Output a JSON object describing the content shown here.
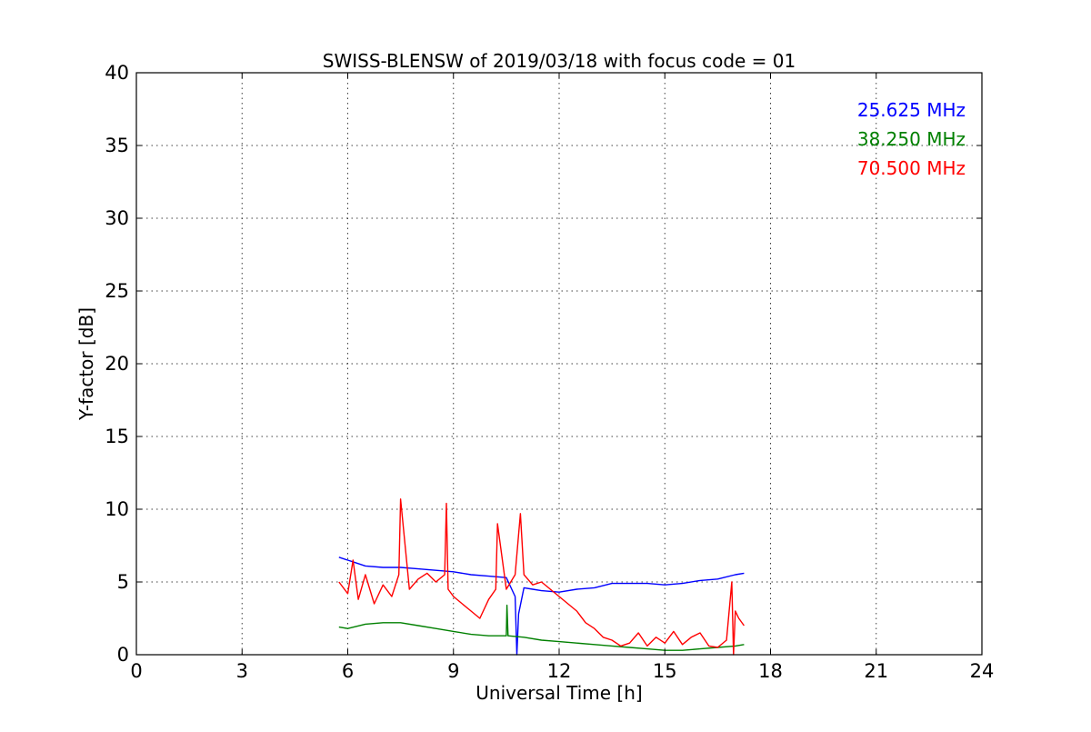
{
  "chart_data": {
    "type": "line",
    "title": "SWISS-BLENSW of 2019/03/18 with focus code = 01",
    "xlabel": "Universal Time [h]",
    "ylabel": "Y-factor [dB]",
    "xlim": [
      0,
      24
    ],
    "ylim": [
      0,
      40
    ],
    "x_ticks": [
      0,
      3,
      6,
      9,
      12,
      15,
      18,
      21,
      24
    ],
    "y_ticks": [
      0,
      5,
      10,
      15,
      20,
      25,
      30,
      35,
      40
    ],
    "x_tick_labels": [
      "0",
      "3",
      "6",
      "9",
      "12",
      "15",
      "18",
      "21",
      "24"
    ],
    "y_tick_labels": [
      "0",
      "5",
      "10",
      "15",
      "20",
      "25",
      "30",
      "35",
      "40"
    ],
    "grid": true,
    "legend_position": "top-right",
    "series": [
      {
        "name": "25.625 MHz",
        "color": "#0000ff",
        "x": [
          5.75,
          6.0,
          6.25,
          6.5,
          7.0,
          7.5,
          8.0,
          8.5,
          9.0,
          9.5,
          10.0,
          10.5,
          10.75,
          10.8,
          10.85,
          11.0,
          11.25,
          11.5,
          12.0,
          12.5,
          13.0,
          13.5,
          14.0,
          14.5,
          15.0,
          15.5,
          16.0,
          16.5,
          17.0,
          17.25
        ],
        "values": [
          6.7,
          6.5,
          6.3,
          6.1,
          6.0,
          6.0,
          5.9,
          5.8,
          5.7,
          5.5,
          5.4,
          5.3,
          4.0,
          0.0,
          2.8,
          4.6,
          4.5,
          4.4,
          4.3,
          4.5,
          4.6,
          4.9,
          4.9,
          4.9,
          4.8,
          4.9,
          5.1,
          5.2,
          5.5,
          5.6
        ]
      },
      {
        "name": "38.250 MHz",
        "color": "#008000",
        "x": [
          5.75,
          6.0,
          6.5,
          7.0,
          7.5,
          8.0,
          8.5,
          9.0,
          9.5,
          10.0,
          10.5,
          10.52,
          10.55,
          11.0,
          11.5,
          12.0,
          12.5,
          13.0,
          13.5,
          14.0,
          14.5,
          15.0,
          15.5,
          16.0,
          16.5,
          17.0,
          17.25
        ],
        "values": [
          1.9,
          1.8,
          2.1,
          2.2,
          2.2,
          2.0,
          1.8,
          1.6,
          1.4,
          1.3,
          1.3,
          3.4,
          1.3,
          1.2,
          1.0,
          0.9,
          0.8,
          0.7,
          0.6,
          0.5,
          0.4,
          0.3,
          0.3,
          0.4,
          0.5,
          0.6,
          0.7
        ]
      },
      {
        "name": "70.500 MHz",
        "color": "#ff0000",
        "x": [
          5.75,
          6.0,
          6.15,
          6.3,
          6.5,
          6.75,
          7.0,
          7.25,
          7.45,
          7.5,
          7.75,
          8.0,
          8.25,
          8.5,
          8.75,
          8.8,
          8.85,
          9.0,
          9.25,
          9.5,
          9.75,
          10.0,
          10.2,
          10.25,
          10.5,
          10.75,
          10.9,
          11.0,
          11.25,
          11.5,
          11.75,
          12.0,
          12.25,
          12.5,
          12.75,
          13.0,
          13.25,
          13.5,
          13.75,
          14.0,
          14.25,
          14.5,
          14.75,
          15.0,
          15.25,
          15.5,
          15.75,
          16.0,
          16.25,
          16.5,
          16.75,
          16.9,
          16.95,
          17.0,
          17.1,
          17.25
        ],
        "values": [
          5.0,
          4.2,
          6.5,
          3.8,
          5.5,
          3.5,
          4.8,
          4.0,
          5.5,
          10.7,
          4.5,
          5.2,
          5.6,
          5.0,
          5.5,
          10.4,
          4.5,
          4.0,
          3.5,
          3.0,
          2.5,
          3.8,
          4.5,
          9.0,
          4.5,
          5.5,
          9.7,
          5.5,
          4.8,
          5.0,
          4.5,
          4.0,
          3.5,
          3.0,
          2.2,
          1.8,
          1.2,
          1.0,
          0.6,
          0.8,
          1.5,
          0.6,
          1.2,
          0.8,
          1.6,
          0.7,
          1.2,
          1.5,
          0.6,
          0.5,
          1.0,
          5.0,
          0.0,
          3.0,
          2.5,
          2.0
        ]
      }
    ]
  }
}
